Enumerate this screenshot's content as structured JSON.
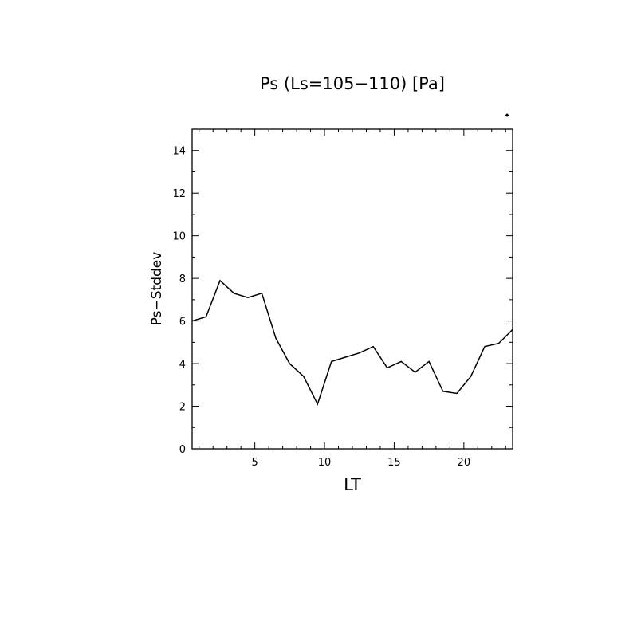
{
  "chart_data": {
    "type": "line",
    "title": "Ps (Ls=105−110) [Pa]",
    "xlabel": "LT",
    "ylabel": "Ps−Stddev",
    "xlim": [
      0.5,
      23.5
    ],
    "ylim": [
      0,
      15
    ],
    "x_ticks": [
      5,
      10,
      15,
      20
    ],
    "y_ticks": [
      0,
      2,
      4,
      6,
      8,
      10,
      12,
      14
    ],
    "grid": false,
    "series": [
      {
        "x": [
          0.5,
          1.5,
          2.5,
          3.5,
          4.5,
          5.5,
          6.5,
          7.5,
          8.5,
          9.5,
          10.5,
          11.5,
          12.5,
          13.5,
          14.5,
          15.5,
          16.5,
          17.5,
          18.5,
          19.5,
          20.5,
          21.5,
          22.5,
          23.5
        ],
        "values": [
          6.0,
          6.2,
          7.9,
          7.3,
          7.1,
          7.3,
          5.2,
          4.0,
          3.4,
          2.1,
          4.1,
          4.3,
          4.5,
          4.8,
          3.8,
          4.1,
          3.6,
          4.1,
          2.7,
          2.6,
          3.4,
          4.8,
          4.95,
          5.6
        ]
      }
    ],
    "marker_symbol": "◆"
  }
}
